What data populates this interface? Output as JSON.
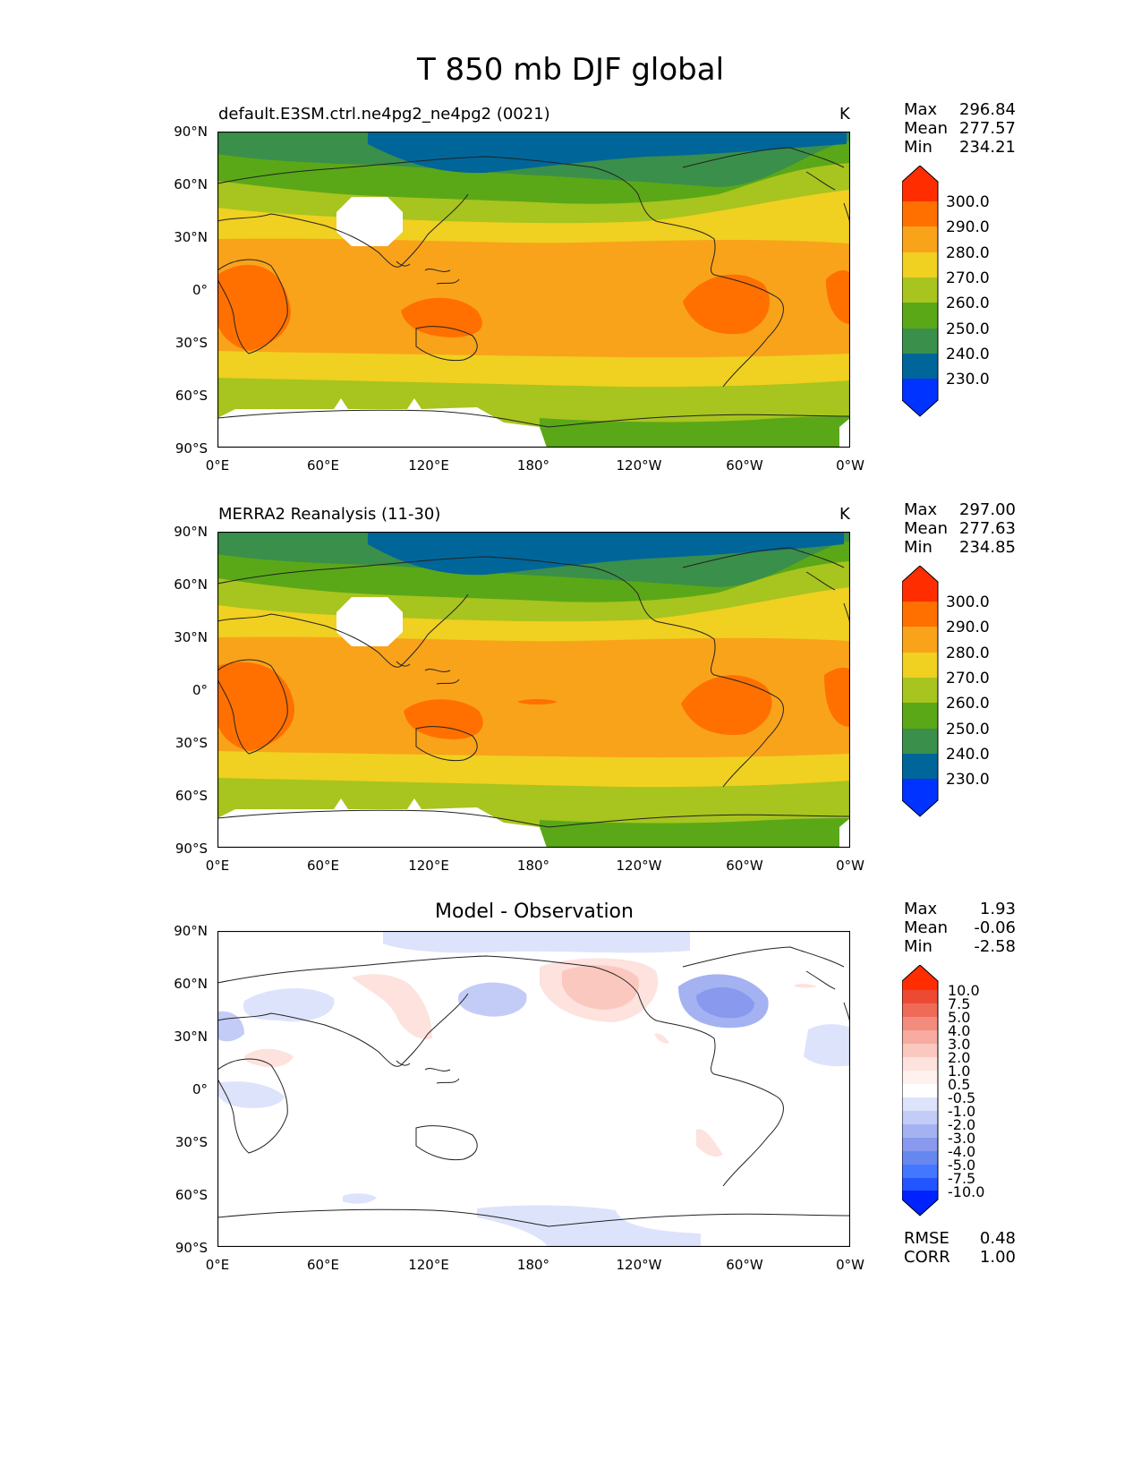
{
  "figure": {
    "title": "T 850 mb DJF global"
  },
  "panels": [
    {
      "id": "model",
      "title_left": "default.E3SM.ctrl.ne4pg2_ne4pg2 (0021)",
      "title_right": "K",
      "stats": {
        "max_label": "Max",
        "max": "296.84",
        "mean_label": "Mean",
        "mean": "277.57",
        "min_label": "Min",
        "min": "234.21"
      },
      "colorbar_ticks": [
        "300.0",
        "290.0",
        "280.0",
        "270.0",
        "260.0",
        "250.0",
        "240.0",
        "230.0"
      ]
    },
    {
      "id": "obs",
      "title_left": "MERRA2 Reanalysis (11-30)",
      "title_right": "K",
      "stats": {
        "max_label": "Max",
        "max": "297.00",
        "mean_label": "Mean",
        "mean": "277.63",
        "min_label": "Min",
        "min": "234.85"
      },
      "colorbar_ticks": [
        "300.0",
        "290.0",
        "280.0",
        "270.0",
        "260.0",
        "250.0",
        "240.0",
        "230.0"
      ]
    },
    {
      "id": "diff",
      "title_center": "Model - Observation",
      "stats": {
        "max_label": "Max",
        "max": "1.93",
        "mean_label": "Mean",
        "mean": "-0.06",
        "min_label": "Min",
        "min": "-2.58"
      },
      "colorbar_ticks": [
        "10.0",
        "7.5",
        "5.0",
        "4.0",
        "3.0",
        "2.0",
        "1.0",
        "0.5",
        "-0.5",
        "-1.0",
        "-2.0",
        "-3.0",
        "-4.0",
        "-5.0",
        "-7.5",
        "-10.0"
      ],
      "metrics": {
        "rmse_label": "RMSE",
        "rmse": "0.48",
        "corr_label": "CORR",
        "corr": "1.00"
      }
    }
  ],
  "axes": {
    "y_ticks": [
      "90°N",
      "60°N",
      "30°N",
      "0°",
      "30°S",
      "60°S",
      "90°S"
    ],
    "x_ticks": [
      "0°E",
      "60°E",
      "120°E",
      "180°",
      "120°W",
      "60°W",
      "0°W"
    ]
  },
  "colors": {
    "abs_levels": [
      "#0033ff",
      "#006699",
      "#3a8f4a",
      "#5aa817",
      "#a8c41e",
      "#f0d020",
      "#f9a31a",
      "#ff7000",
      "#ff2d00"
    ],
    "diff_levels": [
      "#0022ff",
      "#2255ff",
      "#4477ff",
      "#6688ee",
      "#8899ee",
      "#a4b2f2",
      "#c2ccf6",
      "#dde3fb",
      "#ffffff",
      "#fde2de",
      "#fbc8c0",
      "#f8aba0",
      "#f48c7e",
      "#f06a58",
      "#ec4a34",
      "#ff2d00"
    ]
  }
}
